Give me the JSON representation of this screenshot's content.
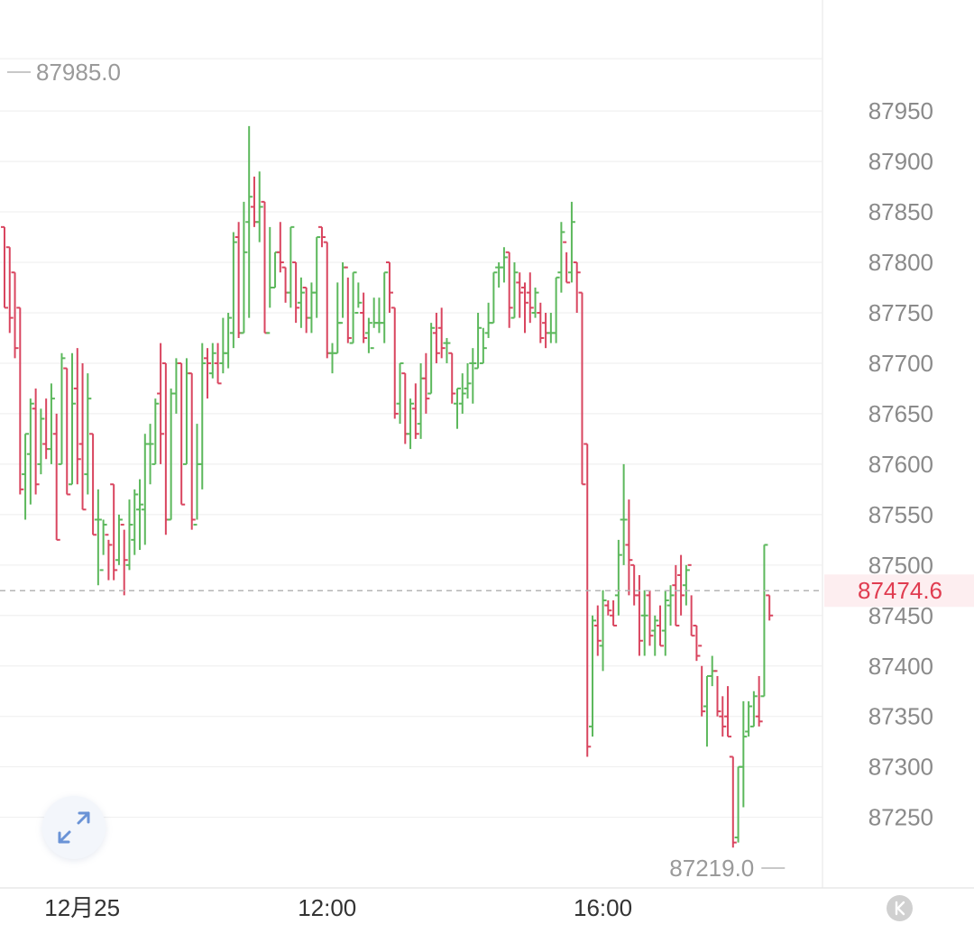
{
  "chart_data": {
    "type": "ohlc",
    "ylim": [
      87180,
      88060
    ],
    "y_ticks": [
      "87950",
      "87900",
      "87850",
      "87800",
      "87750",
      "87700",
      "87650",
      "87600",
      "87550",
      "87500",
      "87450",
      "87400",
      "87350",
      "87300",
      "87250"
    ],
    "x_ticks": [
      {
        "label": "12月25",
        "pos": 8
      },
      {
        "label": "12:00",
        "pos": 62
      },
      {
        "label": "16:00",
        "pos": 115
      }
    ],
    "last_price": "87474.6",
    "high_label": "87985.0",
    "low_label": "87219.0",
    "high_index": 49,
    "low_index": 151,
    "colors": {
      "up": "#5cb85c",
      "down": "#d9455f",
      "grid": "#eeeeee",
      "dashed": "#b5b5b5",
      "last_bg": "#fdeef0",
      "last_text": "#e03c50"
    },
    "bars": [
      [
        87835,
        87835,
        87755,
        87755
      ],
      [
        87815,
        87815,
        87730,
        87745
      ],
      [
        87790,
        87790,
        87705,
        87715
      ],
      [
        87755,
        87755,
        87570,
        87575
      ],
      [
        87590,
        87630,
        87545,
        87630
      ],
      [
        87610,
        87665,
        87560,
        87660
      ],
      [
        87655,
        87675,
        87570,
        87580
      ],
      [
        87600,
        87655,
        87590,
        87645
      ],
      [
        87620,
        87665,
        87605,
        87615
      ],
      [
        87615,
        87680,
        87600,
        87665
      ],
      [
        87630,
        87650,
        87525,
        87525
      ],
      [
        87600,
        87710,
        87600,
        87705
      ],
      [
        87695,
        87695,
        87570,
        87570
      ],
      [
        87580,
        87710,
        87580,
        87660
      ],
      [
        87675,
        87715,
        87580,
        87605
      ],
      [
        87620,
        87700,
        87555,
        87555
      ],
      [
        87590,
        87690,
        87570,
        87665
      ],
      [
        87630,
        87630,
        87530,
        87530
      ],
      [
        87545,
        87575,
        87480,
        87545
      ],
      [
        87495,
        87545,
        87510,
        87540
      ],
      [
        87530,
        87525,
        87485,
        87520
      ],
      [
        87580,
        87580,
        87485,
        87495
      ],
      [
        87505,
        87550,
        87500,
        87545
      ],
      [
        87540,
        87535,
        87470,
        87505
      ],
      [
        87500,
        87565,
        87495,
        87540
      ],
      [
        87525,
        87575,
        87510,
        87570
      ],
      [
        87555,
        87585,
        87515,
        87560
      ],
      [
        87555,
        87630,
        87520,
        87620
      ],
      [
        87620,
        87640,
        87580,
        87620
      ],
      [
        87600,
        87665,
        87600,
        87660
      ],
      [
        87670,
        87720,
        87600,
        87630
      ],
      [
        87700,
        87700,
        87530,
        87545
      ],
      [
        87545,
        87675,
        87545,
        87670
      ],
      [
        87670,
        87705,
        87650,
        87700
      ],
      [
        87700,
        87700,
        87560,
        87560
      ],
      [
        87600,
        87705,
        87600,
        87690
      ],
      [
        87690,
        87690,
        87535,
        87545
      ],
      [
        87540,
        87640,
        87545,
        87600
      ],
      [
        87600,
        87720,
        87575,
        87700
      ],
      [
        87705,
        87715,
        87665,
        87700
      ],
      [
        87690,
        87720,
        87685,
        87710
      ],
      [
        87700,
        87720,
        87680,
        87680
      ],
      [
        87700,
        87745,
        87690,
        87710
      ],
      [
        87710,
        87750,
        87695,
        87745
      ],
      [
        87730,
        87830,
        87715,
        87820
      ],
      [
        87825,
        87840,
        87725,
        87730
      ],
      [
        87730,
        87860,
        87730,
        87810
      ],
      [
        87840,
        87935,
        87745,
        87865
      ],
      [
        87855,
        87885,
        87835,
        87840
      ],
      [
        87840,
        87890,
        87820,
        87855
      ],
      [
        87860,
        87860,
        87730,
        87730
      ],
      [
        87730,
        87835,
        87755,
        87775
      ],
      [
        87775,
        87810,
        87775,
        87810
      ],
      [
        87810,
        87840,
        87790,
        87800
      ],
      [
        87795,
        87795,
        87760,
        87770
      ],
      [
        87770,
        87835,
        87755,
        87835
      ],
      [
        87800,
        87800,
        87740,
        87755
      ],
      [
        87760,
        87785,
        87735,
        87770
      ],
      [
        87775,
        87775,
        87730,
        87745
      ],
      [
        87745,
        87780,
        87730,
        87770
      ],
      [
        87770,
        87825,
        87745,
        87825
      ],
      [
        87835,
        87835,
        87815,
        87825
      ],
      [
        87820,
        87820,
        87705,
        87710
      ],
      [
        87710,
        87720,
        87690,
        87710
      ],
      [
        87710,
        87780,
        87710,
        87740
      ],
      [
        87740,
        87800,
        87745,
        87795
      ],
      [
        87795,
        87785,
        87720,
        87725
      ],
      [
        87720,
        87790,
        87720,
        87790
      ],
      [
        87750,
        87780,
        87755,
        87760
      ],
      [
        87750,
        87770,
        87720,
        87725
      ],
      [
        87730,
        87745,
        87710,
        87740
      ],
      [
        87715,
        87765,
        87735,
        87740
      ],
      [
        87740,
        87765,
        87730,
        87740
      ],
      [
        87740,
        87790,
        87720,
        87790
      ],
      [
        87800,
        87800,
        87750,
        87770
      ],
      [
        87755,
        87755,
        87645,
        87650
      ],
      [
        87660,
        87700,
        87640,
        87700
      ],
      [
        87690,
        87690,
        87620,
        87630
      ],
      [
        87630,
        87665,
        87615,
        87660
      ],
      [
        87655,
        87680,
        87625,
        87630
      ],
      [
        87640,
        87700,
        87625,
        87685
      ],
      [
        87685,
        87710,
        87650,
        87665
      ],
      [
        87670,
        87740,
        87670,
        87735
      ],
      [
        87730,
        87750,
        87700,
        87710
      ],
      [
        87735,
        87755,
        87705,
        87715
      ],
      [
        87720,
        87725,
        87700,
        87720
      ],
      [
        87710,
        87710,
        87660,
        87670
      ],
      [
        87660,
        87675,
        87635,
        87675
      ],
      [
        87660,
        87690,
        87650,
        87670
      ],
      [
        87675,
        87700,
        87665,
        87680
      ],
      [
        87700,
        87715,
        87660,
        87700
      ],
      [
        87695,
        87750,
        87695,
        87735
      ],
      [
        87700,
        87735,
        87700,
        87715
      ],
      [
        87730,
        87760,
        87725,
        87740
      ],
      [
        87740,
        87790,
        87740,
        87790
      ],
      [
        87795,
        87800,
        87775,
        87795
      ],
      [
        87795,
        87815,
        87780,
        87805
      ],
      [
        87810,
        87810,
        87735,
        87755
      ],
      [
        87745,
        87800,
        87745,
        87790
      ],
      [
        87780,
        87790,
        87745,
        87770
      ],
      [
        87775,
        87780,
        87730,
        87760
      ],
      [
        87770,
        87790,
        87740,
        87755
      ],
      [
        87750,
        87775,
        87745,
        87770
      ],
      [
        87750,
        87760,
        87720,
        87725
      ],
      [
        87740,
        87750,
        87715,
        87730
      ],
      [
        87730,
        87750,
        87720,
        87730
      ],
      [
        87730,
        87785,
        87720,
        87785
      ],
      [
        87790,
        87840,
        87770,
        87830
      ],
      [
        87820,
        87810,
        87780,
        87780
      ],
      [
        87790,
        87860,
        87780,
        87840
      ],
      [
        87800,
        87800,
        87750,
        87790
      ],
      [
        87770,
        87770,
        87580,
        87580
      ],
      [
        87620,
        87620,
        87310,
        87320
      ],
      [
        87340,
        87450,
        87330,
        87445
      ],
      [
        87440,
        87460,
        87410,
        87425
      ],
      [
        87420,
        87475,
        87395,
        87465
      ],
      [
        87460,
        87465,
        87450,
        87455
      ],
      [
        87450,
        87465,
        87440,
        87440
      ],
      [
        87470,
        87525,
        87450,
        87510
      ],
      [
        87545,
        87600,
        87500,
        87545
      ],
      [
        87520,
        87565,
        87470,
        87505
      ],
      [
        87500,
        87500,
        87460,
        87470
      ],
      [
        87470,
        87490,
        87410,
        87425
      ],
      [
        87450,
        87475,
        87410,
        87450
      ],
      [
        87470,
        87475,
        87420,
        87430
      ],
      [
        87435,
        87450,
        87410,
        87445
      ],
      [
        87440,
        87460,
        87420,
        87420
      ],
      [
        87435,
        87475,
        87410,
        87465
      ],
      [
        87460,
        87480,
        87440,
        87470
      ],
      [
        87480,
        87500,
        87440,
        87440
      ],
      [
        87490,
        87510,
        87450,
        87470
      ],
      [
        87480,
        87500,
        87460,
        87495
      ],
      [
        87500,
        87470,
        87430,
        87430
      ],
      [
        87440,
        87440,
        87405,
        87410
      ],
      [
        87420,
        87400,
        87350,
        87355
      ],
      [
        87360,
        87390,
        87320,
        87390
      ],
      [
        87390,
        87410,
        87380,
        87395
      ],
      [
        87395,
        87390,
        87350,
        87355
      ],
      [
        87350,
        87370,
        87330,
        87340
      ],
      [
        87350,
        87380,
        87330,
        87330
      ],
      [
        87310,
        87310,
        87220,
        87225
      ],
      [
        87230,
        87300,
        87225,
        87300
      ],
      [
        87300,
        87365,
        87260,
        87330
      ],
      [
        87335,
        87365,
        87330,
        87360
      ],
      [
        87340,
        87375,
        87340,
        87370
      ],
      [
        87350,
        87390,
        87340,
        87345
      ],
      [
        87370,
        87520,
        87370,
        87520
      ],
      [
        87470,
        87470,
        87445,
        87450
      ]
    ]
  }
}
